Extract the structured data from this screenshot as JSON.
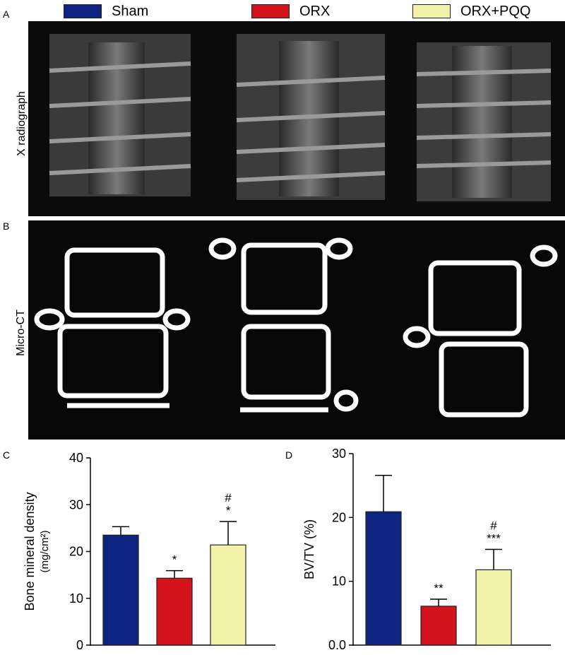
{
  "legend": [
    {
      "label": "Sham",
      "color": "#0d2580"
    },
    {
      "label": "ORX",
      "color": "#d3141c"
    },
    {
      "label": "ORX+PQQ",
      "color": "#f2f2aa"
    }
  ],
  "panels": {
    "a": {
      "letter": "A",
      "row_label": "X radiograph"
    },
    "b": {
      "letter": "B",
      "row_label": "Micro-CT"
    },
    "c": {
      "letter": "C"
    },
    "d": {
      "letter": "D"
    }
  },
  "chart_data": [
    {
      "type": "bar",
      "categories": [
        "Sham",
        "ORX",
        "ORX+PQQ"
      ],
      "values": [
        23.5,
        14.3,
        21.4
      ],
      "errors": [
        1.8,
        1.6,
        5.0
      ],
      "colors": [
        "#0d2580",
        "#d3141c",
        "#f2f2aa"
      ],
      "annotations": [
        "",
        "*",
        "#\n*"
      ],
      "ylabel": "Bone mineral density",
      "ylabel_unit": "(mg/cm²)",
      "ylim": [
        0,
        40
      ],
      "yticks": [
        "0",
        "10",
        "20",
        "30",
        "40"
      ]
    },
    {
      "type": "bar",
      "categories": [
        "Sham",
        "ORX",
        "ORX+PQQ"
      ],
      "values": [
        20.9,
        6.1,
        11.8
      ],
      "errors": [
        5.7,
        1.1,
        3.2
      ],
      "colors": [
        "#0d2580",
        "#d3141c",
        "#f2f2aa"
      ],
      "annotations": [
        "",
        "**",
        "#\n***"
      ],
      "ylabel": "BV/TV (%)",
      "ylim": [
        0,
        30
      ],
      "yticks": [
        "0.0",
        "10",
        "20",
        "30"
      ]
    }
  ]
}
